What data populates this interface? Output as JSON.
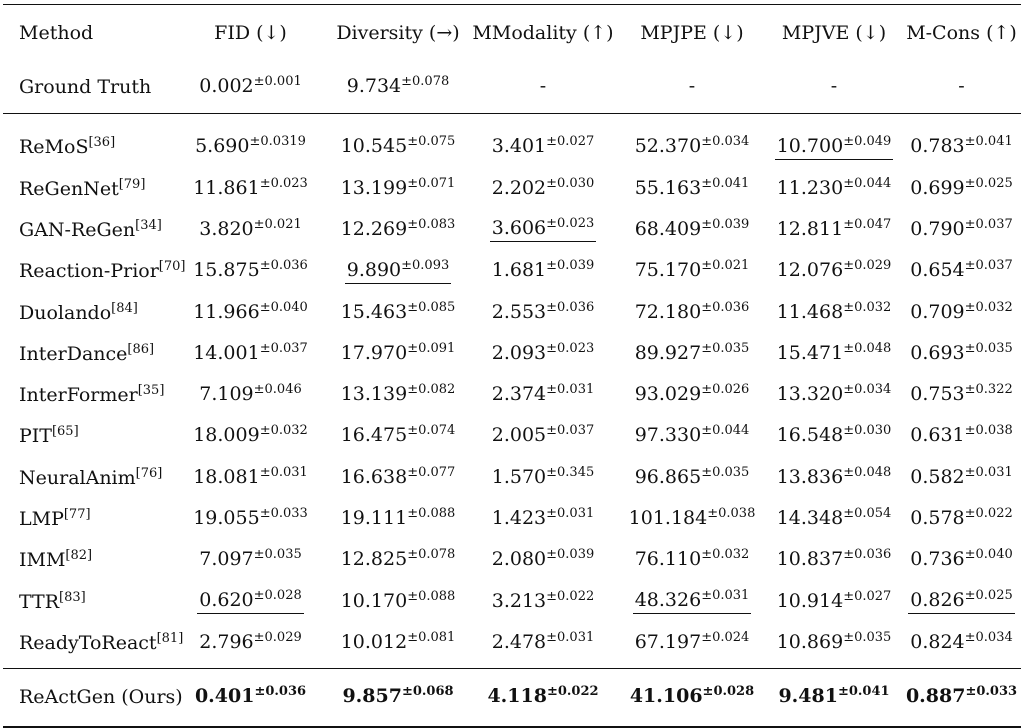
{
  "headers": [
    "Method",
    "FID (↓)",
    "Diversity (→)",
    "MModality (↑)",
    "MPJPE (↓)",
    "MPJVE (↓)",
    "M-Cons (↑)"
  ],
  "ground_truth": {
    "method": "Ground Truth",
    "cells": [
      {
        "v": "0.002",
        "s": "±0.001",
        "u": false
      },
      {
        "v": "9.734",
        "s": "±0.078",
        "u": false
      },
      {
        "v": "-",
        "s": "",
        "u": false
      },
      {
        "v": "-",
        "s": "",
        "u": false
      },
      {
        "v": "-",
        "s": "",
        "u": false
      },
      {
        "v": "-",
        "s": "",
        "u": false
      }
    ]
  },
  "rows": [
    {
      "method": "ReMoS",
      "ref": "[36]",
      "cells": [
        {
          "v": "5.690",
          "s": "±0.0319",
          "u": false
        },
        {
          "v": "10.545",
          "s": "±0.075",
          "u": false
        },
        {
          "v": "3.401",
          "s": "±0.027",
          "u": false
        },
        {
          "v": "52.370",
          "s": "±0.034",
          "u": false
        },
        {
          "v": "10.700",
          "s": "±0.049",
          "u": true
        },
        {
          "v": "0.783",
          "s": "±0.041",
          "u": false
        }
      ]
    },
    {
      "method": "ReGenNet",
      "ref": "[79]",
      "cells": [
        {
          "v": "11.861",
          "s": "±0.023",
          "u": false
        },
        {
          "v": "13.199",
          "s": "±0.071",
          "u": false
        },
        {
          "v": "2.202",
          "s": "±0.030",
          "u": false
        },
        {
          "v": "55.163",
          "s": "±0.041",
          "u": false
        },
        {
          "v": "11.230",
          "s": "±0.044",
          "u": false
        },
        {
          "v": "0.699",
          "s": "±0.025",
          "u": false
        }
      ]
    },
    {
      "method": "GAN-ReGen",
      "ref": "[34]",
      "cells": [
        {
          "v": "3.820",
          "s": "±0.021",
          "u": false
        },
        {
          "v": "12.269",
          "s": "±0.083",
          "u": false
        },
        {
          "v": "3.606",
          "s": "±0.023",
          "u": true
        },
        {
          "v": "68.409",
          "s": "±0.039",
          "u": false
        },
        {
          "v": "12.811",
          "s": "±0.047",
          "u": false
        },
        {
          "v": "0.790",
          "s": "±0.037",
          "u": false
        }
      ]
    },
    {
      "method": "Reaction-Prior",
      "ref": "[70]",
      "cells": [
        {
          "v": "15.875",
          "s": "±0.036",
          "u": false
        },
        {
          "v": "9.890",
          "s": "±0.093",
          "u": true
        },
        {
          "v": "1.681",
          "s": "±0.039",
          "u": false
        },
        {
          "v": "75.170",
          "s": "±0.021",
          "u": false
        },
        {
          "v": "12.076",
          "s": "±0.029",
          "u": false
        },
        {
          "v": "0.654",
          "s": "±0.037",
          "u": false
        }
      ]
    },
    {
      "method": "Duolando",
      "ref": "[84]",
      "cells": [
        {
          "v": "11.966",
          "s": "±0.040",
          "u": false
        },
        {
          "v": "15.463",
          "s": "±0.085",
          "u": false
        },
        {
          "v": "2.553",
          "s": "±0.036",
          "u": false
        },
        {
          "v": "72.180",
          "s": "±0.036",
          "u": false
        },
        {
          "v": "11.468",
          "s": "±0.032",
          "u": false
        },
        {
          "v": "0.709",
          "s": "±0.032",
          "u": false
        }
      ]
    },
    {
      "method": "InterDance",
      "ref": "[86]",
      "cells": [
        {
          "v": "14.001",
          "s": "±0.037",
          "u": false
        },
        {
          "v": "17.970",
          "s": "±0.091",
          "u": false
        },
        {
          "v": "2.093",
          "s": "±0.023",
          "u": false
        },
        {
          "v": "89.927",
          "s": "±0.035",
          "u": false
        },
        {
          "v": "15.471",
          "s": "±0.048",
          "u": false
        },
        {
          "v": "0.693",
          "s": "±0.035",
          "u": false
        }
      ]
    },
    {
      "method": "InterFormer",
      "ref": "[35]",
      "cells": [
        {
          "v": "7.109",
          "s": "±0.046",
          "u": false
        },
        {
          "v": "13.139",
          "s": "±0.082",
          "u": false
        },
        {
          "v": "2.374",
          "s": "±0.031",
          "u": false
        },
        {
          "v": "93.029",
          "s": "±0.026",
          "u": false
        },
        {
          "v": "13.320",
          "s": "±0.034",
          "u": false
        },
        {
          "v": "0.753",
          "s": "±0.322",
          "u": false
        }
      ]
    },
    {
      "method": "PIT",
      "ref": "[65]",
      "cells": [
        {
          "v": "18.009",
          "s": "±0.032",
          "u": false
        },
        {
          "v": "16.475",
          "s": "±0.074",
          "u": false
        },
        {
          "v": "2.005",
          "s": "±0.037",
          "u": false
        },
        {
          "v": "97.330",
          "s": "±0.044",
          "u": false
        },
        {
          "v": "16.548",
          "s": "±0.030",
          "u": false
        },
        {
          "v": "0.631",
          "s": "±0.038",
          "u": false
        }
      ]
    },
    {
      "method": "NeuralAnim",
      "ref": "[76]",
      "cells": [
        {
          "v": "18.081",
          "s": "±0.031",
          "u": false
        },
        {
          "v": "16.638",
          "s": "±0.077",
          "u": false
        },
        {
          "v": "1.570",
          "s": "±0.345",
          "u": false
        },
        {
          "v": "96.865",
          "s": "±0.035",
          "u": false
        },
        {
          "v": "13.836",
          "s": "±0.048",
          "u": false
        },
        {
          "v": "0.582",
          "s": "±0.031",
          "u": false
        }
      ]
    },
    {
      "method": "LMP",
      "ref": "[77]",
      "cells": [
        {
          "v": "19.055",
          "s": "±0.033",
          "u": false
        },
        {
          "v": "19.111",
          "s": "±0.088",
          "u": false
        },
        {
          "v": "1.423",
          "s": "±0.031",
          "u": false
        },
        {
          "v": "101.184",
          "s": "±0.038",
          "u": false
        },
        {
          "v": "14.348",
          "s": "±0.054",
          "u": false
        },
        {
          "v": "0.578",
          "s": "±0.022",
          "u": false
        }
      ]
    },
    {
      "method": "IMM",
      "ref": "[82]",
      "cells": [
        {
          "v": "7.097",
          "s": "±0.035",
          "u": false
        },
        {
          "v": "12.825",
          "s": "±0.078",
          "u": false
        },
        {
          "v": "2.080",
          "s": "±0.039",
          "u": false
        },
        {
          "v": "76.110",
          "s": "±0.032",
          "u": false
        },
        {
          "v": "10.837",
          "s": "±0.036",
          "u": false
        },
        {
          "v": "0.736",
          "s": "±0.040",
          "u": false
        }
      ]
    },
    {
      "method": "TTR",
      "ref": "[83]",
      "cells": [
        {
          "v": "0.620",
          "s": "±0.028",
          "u": true
        },
        {
          "v": "10.170",
          "s": "±0.088",
          "u": false
        },
        {
          "v": "3.213",
          "s": "±0.022",
          "u": false
        },
        {
          "v": "48.326",
          "s": "±0.031",
          "u": true
        },
        {
          "v": "10.914",
          "s": "±0.027",
          "u": false
        },
        {
          "v": "0.826",
          "s": "±0.025",
          "u": true
        }
      ]
    },
    {
      "method": "ReadyToReact",
      "ref": "[81]",
      "cells": [
        {
          "v": "2.796",
          "s": "±0.029",
          "u": false
        },
        {
          "v": "10.012",
          "s": "±0.081",
          "u": false
        },
        {
          "v": "2.478",
          "s": "±0.031",
          "u": false
        },
        {
          "v": "67.197",
          "s": "±0.024",
          "u": false
        },
        {
          "v": "10.869",
          "s": "±0.035",
          "u": false
        },
        {
          "v": "0.824",
          "s": "±0.034",
          "u": false
        }
      ]
    }
  ],
  "ours": {
    "method": "ReActGen (Ours)",
    "cells": [
      {
        "v": "0.401",
        "s": "±0.036",
        "u": false
      },
      {
        "v": "9.857",
        "s": "±0.068",
        "u": false
      },
      {
        "v": "4.118",
        "s": "±0.022",
        "u": false
      },
      {
        "v": "41.106",
        "s": "±0.028",
        "u": false
      },
      {
        "v": "9.481",
        "s": "±0.041",
        "u": false
      },
      {
        "v": "0.887",
        "s": "±0.033",
        "u": false
      }
    ]
  }
}
